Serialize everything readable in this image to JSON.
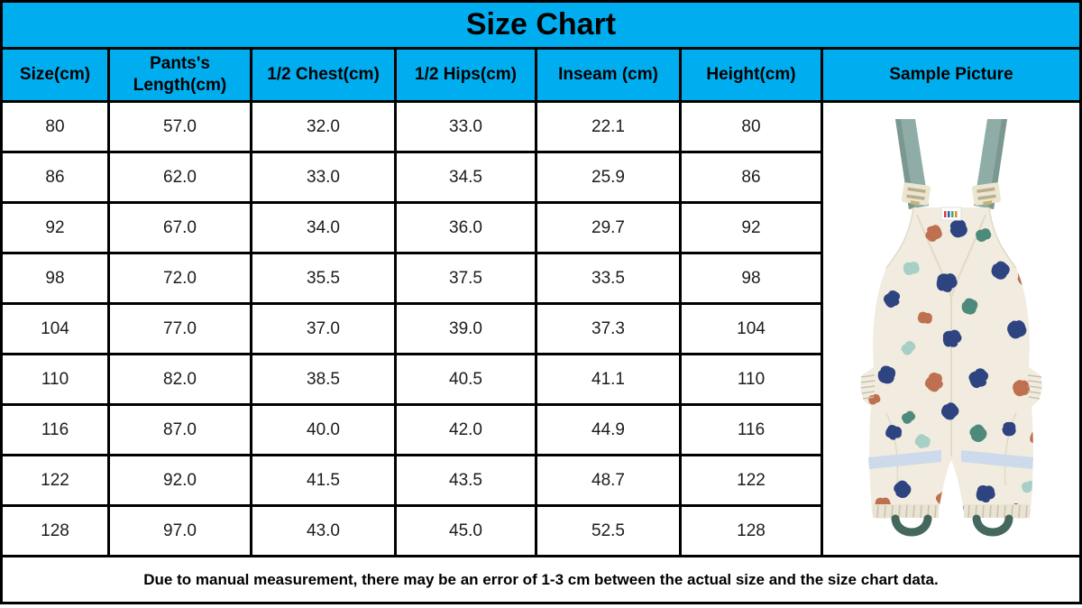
{
  "title": "Size Chart",
  "chart_data": {
    "type": "table",
    "title": "Size Chart",
    "columns": [
      "Size(cm)",
      "Pants's Length(cm)",
      "1/2 Chest(cm)",
      "1/2 Hips(cm)",
      "Inseam (cm)",
      "Height(cm)",
      "Sample Picture"
    ],
    "rows": [
      [
        "80",
        "57.0",
        "32.0",
        "33.0",
        "22.1",
        "80"
      ],
      [
        "86",
        "62.0",
        "33.0",
        "34.5",
        "25.9",
        "86"
      ],
      [
        "92",
        "67.0",
        "34.0",
        "36.0",
        "29.7",
        "92"
      ],
      [
        "98",
        "72.0",
        "35.5",
        "37.5",
        "33.5",
        "98"
      ],
      [
        "104",
        "77.0",
        "37.0",
        "39.0",
        "37.3",
        "104"
      ],
      [
        "110",
        "82.0",
        "38.5",
        "40.5",
        "41.1",
        "110"
      ],
      [
        "116",
        "87.0",
        "40.0",
        "42.0",
        "44.9",
        "116"
      ],
      [
        "122",
        "92.0",
        "41.5",
        "43.5",
        "48.7",
        "122"
      ],
      [
        "128",
        "97.0",
        "43.0",
        "45.0",
        "52.5",
        "128"
      ]
    ],
    "footnote": "Due to manual measurement, there may be an error of 1-3 cm between the actual size and the size chart data."
  },
  "sample_picture": {
    "alt": "kids-overalls-photo"
  },
  "colors": {
    "header_background": "#00aeef",
    "border": "#000000",
    "cell_background": "#ffffff",
    "text": "#1c1c1c",
    "garment_body": "#f1ecdf",
    "garment_seam": "#e2dac7",
    "strap_sage": "#8fada6",
    "strap_sage_dark": "#7a988f",
    "buckle_cream": "#ece5cf",
    "buckle_slot": "#b9ae90",
    "buckle_metal": "#c8b273",
    "cuff_band": "#e9e3d3",
    "cuff_gather": "#c9c1ac",
    "blob_navy": "#2e4480",
    "blob_teal": "#4e8a7b",
    "blob_mint": "#a6cfc6",
    "blob_rust": "#bf7050",
    "reflective_stripe": "#ccdaeb",
    "foot_loop": "#44685e"
  }
}
